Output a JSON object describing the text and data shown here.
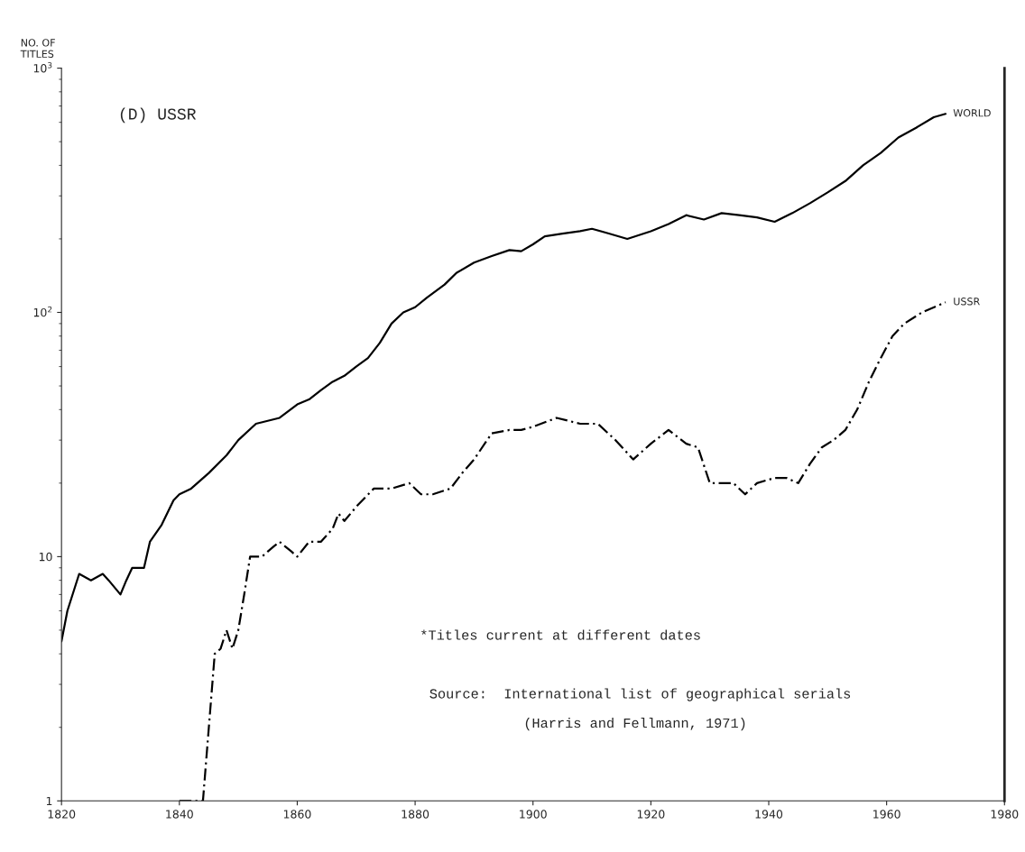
{
  "chart_data": {
    "type": "line",
    "title": "(D) USSR",
    "ylabel": "NO. OF\nTITLES",
    "log": "y",
    "xlim": [
      1820,
      1980
    ],
    "ylim": [
      1,
      1000
    ],
    "xticks": [
      1820,
      1840,
      1860,
      1880,
      1900,
      1920,
      1940,
      1960,
      1980
    ],
    "yticks": [
      {
        "value": 1,
        "label": "1"
      },
      {
        "value": 10,
        "label": "10"
      },
      {
        "value": 100,
        "label": "10$^{2}$"
      },
      {
        "value": 1000,
        "label": "10$^{3}$"
      }
    ],
    "grid": false,
    "legend": false,
    "series": [
      {
        "name": "WORLD",
        "color": "#000000",
        "line_style": "solid",
        "x": [
          1820,
          1821,
          1823,
          1825,
          1827,
          1828,
          1830,
          1831,
          1832,
          1834,
          1835,
          1837,
          1839,
          1840,
          1842,
          1845,
          1848,
          1850,
          1853,
          1857,
          1860,
          1862,
          1864,
          1866,
          1868,
          1870,
          1872,
          1874,
          1876,
          1878,
          1880,
          1882,
          1885,
          1887,
          1890,
          1893,
          1896,
          1898,
          1900,
          1902,
          1905,
          1908,
          1910,
          1913,
          1916,
          1920,
          1923,
          1926,
          1929,
          1932,
          1935,
          1938,
          1941,
          1944,
          1947,
          1950,
          1953,
          1956,
          1959,
          1962,
          1965,
          1968,
          1970
        ],
        "values": [
          4.5,
          6,
          8.5,
          8,
          8.5,
          8,
          7,
          8,
          9,
          9,
          11.5,
          13.5,
          17,
          18,
          19,
          22,
          26,
          30,
          35,
          37,
          42,
          44,
          48,
          52,
          55,
          60,
          65,
          75,
          90,
          100,
          105,
          115,
          130,
          145,
          160,
          170,
          180,
          178,
          190,
          205,
          210,
          215,
          220,
          210,
          200,
          215,
          230,
          250,
          240,
          255,
          250,
          245,
          235,
          255,
          280,
          310,
          345,
          400,
          450,
          520,
          570,
          630,
          650
        ]
      },
      {
        "name": "USSR",
        "color": "#000000",
        "line_style": "dashed",
        "x": [
          1840,
          1844,
          1845,
          1846,
          1847,
          1848,
          1849,
          1850,
          1851,
          1852,
          1854,
          1856,
          1857,
          1859,
          1860,
          1862,
          1864,
          1866,
          1867,
          1868,
          1870,
          1873,
          1876,
          1879,
          1881,
          1883,
          1886,
          1888,
          1890,
          1893,
          1896,
          1898,
          1900,
          1904,
          1908,
          1911,
          1914,
          1917,
          1920,
          1923,
          1926,
          1928,
          1930,
          1932,
          1934,
          1936,
          1938,
          1941,
          1943,
          1945,
          1947,
          1949,
          1951,
          1953,
          1955,
          1957,
          1959,
          1961,
          1963,
          1966,
          1970
        ],
        "values": [
          1,
          1,
          2,
          4,
          4.2,
          5,
          4.2,
          5,
          7,
          10,
          10,
          11,
          11.5,
          10.5,
          10,
          11.5,
          11.5,
          13,
          15,
          14,
          16,
          19,
          19,
          20,
          18,
          18,
          19,
          22,
          25,
          32,
          33,
          33,
          34,
          37,
          35,
          35,
          30,
          25,
          29,
          33,
          29,
          28,
          20,
          20,
          20,
          18,
          20,
          21,
          21,
          20,
          24,
          28,
          30,
          33,
          40,
          52,
          65,
          80,
          90,
          100,
          110
        ]
      }
    ],
    "annotations": [
      "*Titles current at different dates",
      "Source:  International list of geographical serials",
      "(Harris and Fellmann, 1971)"
    ]
  }
}
